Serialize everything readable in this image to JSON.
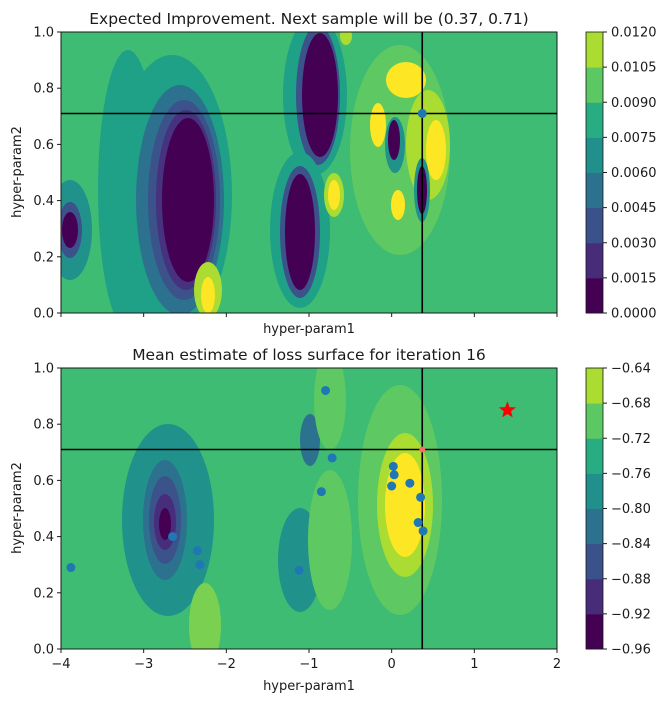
{
  "chart_data": [
    {
      "type": "contour",
      "title": "Expected Improvement. Next sample will be (0.37, 0.71)",
      "xlabel": "hyper-param1",
      "ylabel": "hyper-param2",
      "xlim": [
        -4,
        2
      ],
      "ylim": [
        0,
        1
      ],
      "x_tick_labels": [],
      "y_ticks": [
        0.0,
        0.2,
        0.4,
        0.6,
        0.8,
        1.0
      ],
      "y_tick_labels": [
        "0.0",
        "0.2",
        "0.4",
        "0.6",
        "0.8",
        "1.0"
      ],
      "colorbar": {
        "levels": [
          0.0,
          0.0015,
          0.003,
          0.0045,
          0.006,
          0.0075,
          0.009,
          0.0105,
          0.012
        ],
        "tick_labels": [
          "0.0000",
          "0.0015",
          "0.0030",
          "0.0045",
          "0.0060",
          "0.0075",
          "0.0090",
          "0.0105",
          "0.0120"
        ]
      },
      "crosshair": {
        "x": 0.37,
        "y": 0.71
      },
      "next_sample": {
        "x": 0.37,
        "y": 0.71
      }
    },
    {
      "type": "contour",
      "title": "Mean estimate of loss surface for iteration 16",
      "xlabel": "hyper-param1",
      "ylabel": "hyper-param2",
      "xlim": [
        -4,
        2
      ],
      "ylim": [
        0,
        1
      ],
      "x_ticks": [
        -4,
        -3,
        -2,
        -1,
        0,
        1,
        2
      ],
      "x_tick_labels": [
        "−4",
        "−3",
        "−2",
        "−1",
        "0",
        "1",
        "2"
      ],
      "y_ticks": [
        0.0,
        0.2,
        0.4,
        0.6,
        0.8,
        1.0
      ],
      "y_tick_labels": [
        "0.0",
        "0.2",
        "0.4",
        "0.6",
        "0.8",
        "1.0"
      ],
      "colorbar": {
        "levels": [
          -0.96,
          -0.92,
          -0.88,
          -0.84,
          -0.8,
          -0.76,
          -0.72,
          -0.68,
          -0.64
        ],
        "tick_labels": [
          "−0.96",
          "−0.92",
          "−0.88",
          "−0.84",
          "−0.80",
          "−0.76",
          "−0.72",
          "−0.68",
          "−0.64"
        ]
      },
      "crosshair": {
        "x": 0.37,
        "y": 0.71
      },
      "sampled_points": [
        {
          "x": -3.88,
          "y": 0.29
        },
        {
          "x": -2.65,
          "y": 0.4
        },
        {
          "x": -2.35,
          "y": 0.35
        },
        {
          "x": -2.32,
          "y": 0.3
        },
        {
          "x": -1.12,
          "y": 0.28
        },
        {
          "x": -0.8,
          "y": 0.92
        },
        {
          "x": -0.72,
          "y": 0.68
        },
        {
          "x": -0.85,
          "y": 0.56
        },
        {
          "x": 0.0,
          "y": 0.58
        },
        {
          "x": 0.02,
          "y": 0.65
        },
        {
          "x": 0.03,
          "y": 0.62
        },
        {
          "x": 0.22,
          "y": 0.59
        },
        {
          "x": 0.35,
          "y": 0.54
        },
        {
          "x": 0.32,
          "y": 0.45
        },
        {
          "x": 0.38,
          "y": 0.42
        }
      ],
      "best_point": {
        "x": 1.4,
        "y": 0.85,
        "marker": "star",
        "color": "#ff0000"
      }
    }
  ],
  "colors": {
    "viridis": [
      "#440154",
      "#472c7a",
      "#3b518b",
      "#2c718e",
      "#21908d",
      "#27ad81",
      "#5cc863",
      "#aadc32",
      "#fde725"
    ],
    "points": "#1f77b4"
  }
}
